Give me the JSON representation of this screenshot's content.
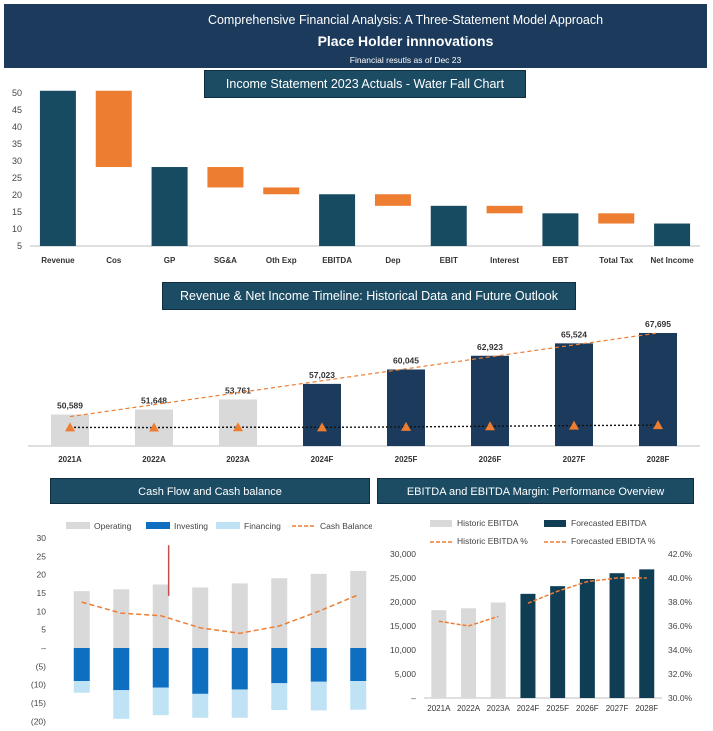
{
  "header": {
    "title": "Comprehensive Financial Analysis: A Three-Statement Model Approach",
    "company": "Place Holder innnovations",
    "subtitle": "Financial resutls as of Dec 23"
  },
  "colors": {
    "navy": "#174b62",
    "orange": "#ed7d31",
    "gray": "#d9d9d9",
    "dark_navy": "#1b3a5c",
    "blue": "#0e6fc1",
    "light_blue": "#bfe3f4",
    "teal_dark": "#0f3d53"
  },
  "chart_data": [
    {
      "id": "waterfall",
      "type": "bar",
      "title": "Income Statement 2023  Actuals - Water Fall Chart",
      "categories": [
        "Revenue",
        "Cos",
        "GP",
        "SG&A",
        "Oth Exp",
        "EBITDA",
        "Dep",
        "EBIT",
        "Interest",
        "EBT",
        "Total Tax",
        "Net Income"
      ],
      "bars": [
        {
          "low": 5,
          "high": 50.6,
          "kind": "total"
        },
        {
          "low": 28.2,
          "high": 50.6,
          "kind": "delta"
        },
        {
          "low": 5,
          "high": 28.2,
          "kind": "total"
        },
        {
          "low": 22.2,
          "high": 28.2,
          "kind": "delta"
        },
        {
          "low": 20.2,
          "high": 22.2,
          "kind": "delta"
        },
        {
          "low": 5,
          "high": 20.2,
          "kind": "total"
        },
        {
          "low": 16.8,
          "high": 20.2,
          "kind": "delta"
        },
        {
          "low": 5,
          "high": 16.8,
          "kind": "total"
        },
        {
          "low": 14.6,
          "high": 16.8,
          "kind": "delta"
        },
        {
          "low": 5,
          "high": 14.6,
          "kind": "total"
        },
        {
          "low": 11.6,
          "high": 14.6,
          "kind": "delta"
        },
        {
          "low": 5,
          "high": 11.6,
          "kind": "total"
        }
      ],
      "yticks": [
        5,
        10,
        15,
        20,
        25,
        30,
        35,
        40,
        45,
        50
      ],
      "ylim": [
        5,
        52
      ]
    },
    {
      "id": "revenue_timeline",
      "type": "bar",
      "title": "Revenue  & Net Income  Timeline: Historical Data and Future Outlook",
      "categories": [
        "2021A",
        "2022A",
        "2023A",
        "2024F",
        "2025F",
        "2026F",
        "2027F",
        "2028F"
      ],
      "values": [
        50589,
        51648,
        53761,
        57023,
        60045,
        62923,
        65524,
        67695
      ],
      "value_labels": [
        "50,589",
        "51,648",
        "53,761",
        "57,023",
        "60,045",
        "62,923",
        "65,524",
        "67,695"
      ],
      "actual_count": 3,
      "net_income": [
        11.5,
        11.4,
        11.6,
        11.5,
        11.8,
        12.2,
        12.6,
        12.9
      ],
      "ylim": [
        44000,
        70000
      ]
    },
    {
      "id": "cash_flow",
      "type": "bar",
      "title": "Cash Flow and Cash balance",
      "legend": [
        "Operating",
        "Investing",
        "Financing",
        "Cash Balance"
      ],
      "yticks": [
        30,
        25,
        20,
        15,
        10,
        5,
        0,
        -5,
        -10,
        -15,
        -20
      ],
      "ytick_labels": [
        "30",
        "25",
        "20",
        "15",
        "10",
        "5",
        "–",
        "(5)",
        "(10)",
        "(15)",
        "(20)"
      ],
      "ylim": [
        -20,
        30
      ],
      "operating": [
        15.5,
        16,
        17.3,
        16.5,
        17.6,
        19,
        20.2,
        21
      ],
      "investing": [
        -9,
        -11.5,
        -10.8,
        -12.5,
        -11.3,
        -9.6,
        -9.2,
        -9
      ],
      "financing": [
        -3.2,
        -7.8,
        -7.5,
        -6.5,
        -7.7,
        -7.3,
        -7.8,
        -7.8
      ],
      "cash_balance": [
        12.5,
        9.5,
        8.8,
        5.5,
        4,
        6,
        10,
        14.5
      ],
      "marker_line": [
        28,
        14.2
      ]
    },
    {
      "id": "ebitda",
      "type": "bar",
      "title": "EBITDA and EBITDA Margin: Performance Overview",
      "legend": [
        "Historic EBITDA",
        "Forecasted EBITDA",
        "Historic EBITDA %",
        "Forecasted EBIDTA %"
      ],
      "categories": [
        "2021A",
        "2022A",
        "2023A",
        "2024F",
        "2025F",
        "2026F",
        "2027F",
        "2028F"
      ],
      "values": [
        18300,
        18700,
        19900,
        21700,
        23300,
        24800,
        26000,
        26800
      ],
      "actual_count": 3,
      "margin_historic": [
        36.4,
        36.0,
        36.8
      ],
      "margin_forecast": [
        37.9,
        38.9,
        39.7,
        40.0,
        40.0
      ],
      "yticks_left": [
        "30,000",
        "25,000",
        "20,000",
        "15,000",
        "10,000",
        "5,000",
        "–"
      ],
      "yticks_right": [
        "42.0%",
        "40.0%",
        "38.0%",
        "36.0%",
        "34.0%",
        "32.0%",
        "30.0%"
      ],
      "ylim_left": [
        0,
        30000
      ],
      "ylim_right": [
        30,
        42
      ]
    }
  ]
}
